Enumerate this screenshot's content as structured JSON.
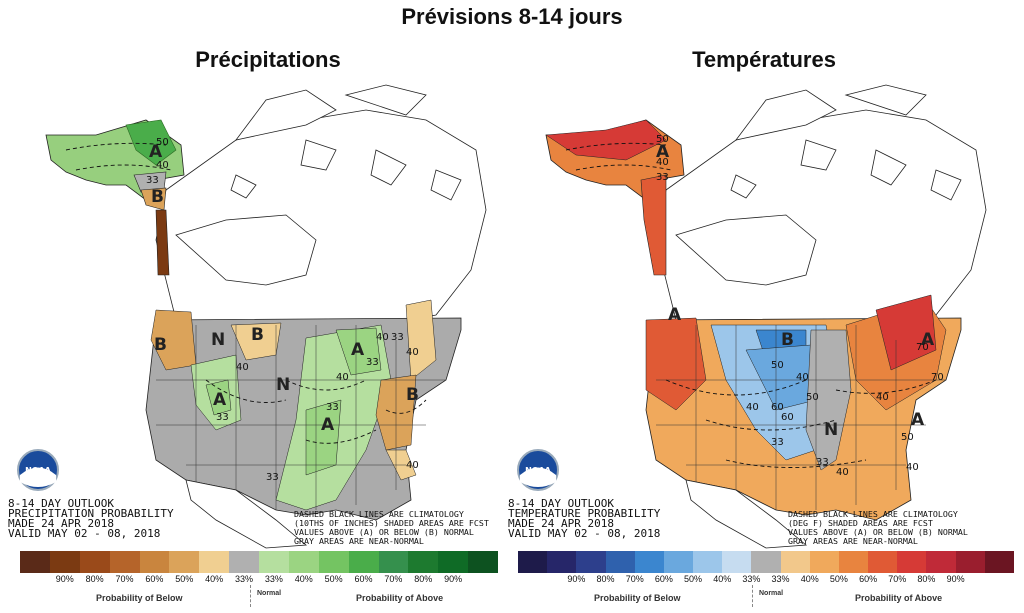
{
  "title": "Prévisions 8-14 jours",
  "panels": {
    "precip": {
      "title": "Précipitations",
      "outlook_text": [
        "8-14 DAY OUTLOOK",
        "PRECIPITATION PROBABILITY",
        "MADE   24 APR 2018",
        "VALID   MAY 02 - 08, 2018"
      ],
      "note_text": [
        "DASHED BLACK LINES ARE CLIMATOLOGY",
        "(10THS OF INCHES) SHADED AREAS ARE FCST",
        "VALUES ABOVE (A) OR BELOW (B) NORMAL",
        "GRAY AREAS ARE NEAR-NORMAL"
      ],
      "region_letters": [
        "A",
        "B",
        "B",
        "N",
        "B",
        "A",
        "A",
        "N",
        "A",
        "B"
      ],
      "contour_labels": [
        "50",
        "40",
        "33",
        "40",
        "33",
        "33",
        "40",
        "33",
        "40",
        "33",
        "40",
        "33",
        "40"
      ]
    },
    "temp": {
      "title": "Températures",
      "outlook_text": [
        "8-14 DAY OUTLOOK",
        "TEMPERATURE PROBABILITY",
        "MADE   24 APR 2018",
        "VALID   MAY 02 - 08, 2018"
      ],
      "note_text": [
        "DASHED BLACK LINES ARE CLIMATOLOGY",
        "(DEG F) SHADED AREAS ARE FCST",
        "VALUES ABOVE (A) OR BELOW (B) NORMAL",
        "GRAY AREAS ARE NEAR-NORMAL"
      ],
      "region_letters": [
        "A",
        "A",
        "B",
        "A",
        "N",
        "A"
      ],
      "contour_labels": [
        "50",
        "40",
        "33",
        "50",
        "60",
        "40",
        "50",
        "60",
        "40",
        "33",
        "40",
        "70",
        "50",
        "70",
        "33",
        "40",
        "40"
      ]
    }
  },
  "legends": {
    "precip": {
      "colors": [
        "#5a2a18",
        "#7b3a12",
        "#9a4a1a",
        "#b5642a",
        "#c9853e",
        "#dba35a",
        "#f0cf91",
        "#b0b0b0",
        "#b5df9f",
        "#9bd482",
        "#74c462",
        "#4aad4a",
        "#35904d",
        "#1d7a2f",
        "#0f6b26",
        "#0d5220"
      ],
      "ticks": [
        "90%",
        "80%",
        "70%",
        "60%",
        "50%",
        "40%",
        "33%",
        "33%",
        "40%",
        "50%",
        "60%",
        "70%",
        "80%",
        "90%"
      ],
      "below_label": "Probability of Below",
      "normal_label": "Normal",
      "above_label": "Probability of Above"
    },
    "temp": {
      "colors": [
        "#1e1b4a",
        "#262669",
        "#2d3f8c",
        "#2f61ad",
        "#3b86cf",
        "#6aa8de",
        "#9cc6ea",
        "#c6dcf0",
        "#b0b0b0",
        "#f2c88b",
        "#f0a95c",
        "#e8843f",
        "#e05a35",
        "#d63a36",
        "#c02a38",
        "#9a1e2e",
        "#6b1522"
      ],
      "ticks": [
        "90%",
        "80%",
        "70%",
        "60%",
        "50%",
        "40%",
        "33%",
        "33%",
        "40%",
        "50%",
        "60%",
        "70%",
        "80%",
        "90%"
      ],
      "below_label": "Probability of Below",
      "normal_label": "Normal",
      "above_label": "Probability of Above"
    }
  },
  "logo_text": "NOAA"
}
